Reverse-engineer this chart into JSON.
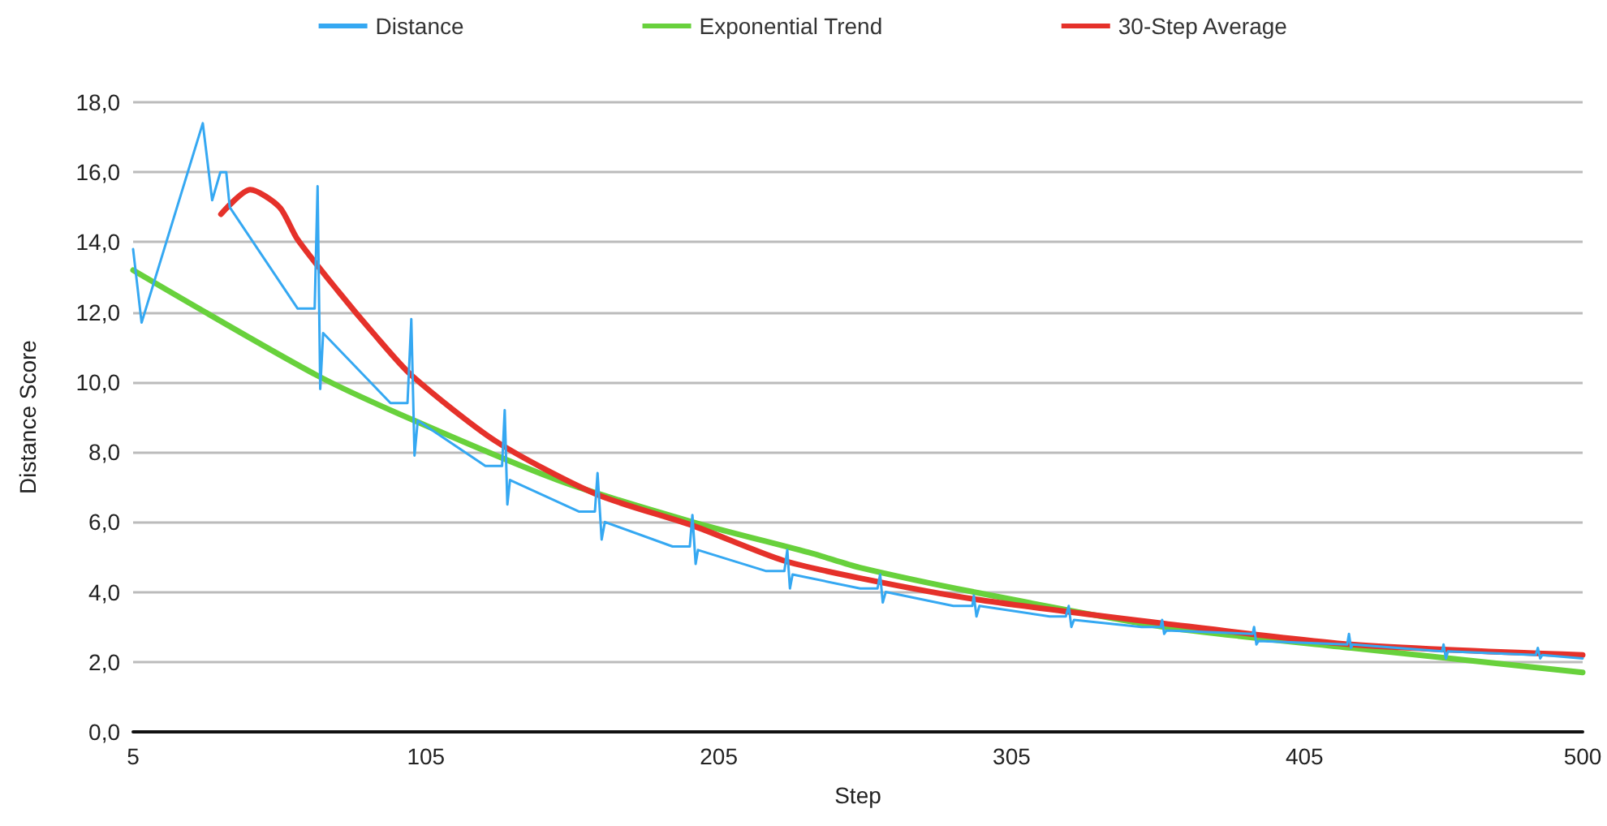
{
  "chart_data": {
    "type": "line",
    "xlabel": "Step",
    "ylabel": "Distance Score",
    "xlim": [
      5,
      500
    ],
    "xticks": [
      5,
      105,
      205,
      305,
      405,
      500
    ],
    "ylim": [
      0,
      18
    ],
    "yticks": [
      {
        "value": 0,
        "label": "0,0"
      },
      {
        "value": 2,
        "label": "2,0"
      },
      {
        "value": 4,
        "label": "4,0"
      },
      {
        "value": 6,
        "label": "6,0"
      },
      {
        "value": 8,
        "label": "8,0"
      },
      {
        "value": 10,
        "label": "10,0"
      },
      {
        "value": 12,
        "label": "12,0"
      },
      {
        "value": 14,
        "label": "14,0"
      },
      {
        "value": 16,
        "label": "16,0"
      },
      {
        "value": 18,
        "label": "18,0"
      }
    ],
    "grid": "y",
    "legend": "top",
    "marker": "none",
    "line_style": "solid",
    "series": [
      {
        "name": "Distance",
        "color": "#35a8f2",
        "x": [
          5,
          7.9,
          28.8,
          32,
          34.8,
          36.8,
          38,
          61.2,
          67,
          68,
          68.9,
          69.9,
          92.9,
          98.7,
          100,
          101.1,
          102.2,
          125.3,
          131,
          131.9,
          132.8,
          133.7,
          157.2,
          162.7,
          163.6,
          165,
          166.1,
          189.2,
          195.1,
          196,
          197.1,
          197.9,
          221,
          227.4,
          228.4,
          229.3,
          230.2,
          253.3,
          259.2,
          260.1,
          261,
          262,
          285.1,
          291.6,
          292.1,
          293,
          294,
          318,
          323.5,
          324.5,
          325.4,
          326.3,
          349.4,
          355.9,
          356.4,
          357.1,
          357.9,
          387.3,
          387.8,
          388.6,
          389.3,
          419.6,
          420.2,
          420.9,
          421.4,
          452,
          452.5,
          453.3,
          454,
          484,
          484.7,
          485.5,
          486.2,
          500
        ],
        "values": [
          13.8,
          11.7,
          17.4,
          15.2,
          16.0,
          16.0,
          15.0,
          12.1,
          12.1,
          15.6,
          9.8,
          11.4,
          9.4,
          9.4,
          11.8,
          7.9,
          8.9,
          7.6,
          7.6,
          9.2,
          6.5,
          7.2,
          6.3,
          6.3,
          7.4,
          5.5,
          6.0,
          5.3,
          5.3,
          6.2,
          4.8,
          5.2,
          4.6,
          4.6,
          5.2,
          4.1,
          4.5,
          4.1,
          4.1,
          4.5,
          3.7,
          4.0,
          3.6,
          3.6,
          3.9,
          3.3,
          3.6,
          3.3,
          3.3,
          3.6,
          3.0,
          3.2,
          3.0,
          3.0,
          3.2,
          2.8,
          2.9,
          2.8,
          3.0,
          2.5,
          2.6,
          2.5,
          2.8,
          2.4,
          2.5,
          2.3,
          2.5,
          2.1,
          2.3,
          2.2,
          2.4,
          2.1,
          2.2,
          2.1
        ]
      },
      {
        "name": "Exponential Trend",
        "color": "#68d13c",
        "x": [
          5,
          67.6,
          101,
          150,
          196,
          237,
          253,
          292,
          357,
          421,
          500
        ],
        "values": [
          13.2,
          10.2,
          8.9,
          7.2,
          6.0,
          5.1,
          4.7,
          4.0,
          3.0,
          2.4,
          1.7
        ]
      },
      {
        "name": "30-Step Average",
        "color": "#e5312a",
        "x": [
          35,
          45,
          55,
          61,
          75,
          87,
          100,
          129,
          163,
          196,
          227,
          253,
          292,
          357,
          421,
          500
        ],
        "values": [
          14.8,
          15.5,
          15.0,
          14.1,
          12.6,
          11.4,
          10.2,
          8.3,
          6.8,
          5.9,
          4.9,
          4.4,
          3.8,
          3.1,
          2.5,
          2.2
        ]
      }
    ]
  }
}
